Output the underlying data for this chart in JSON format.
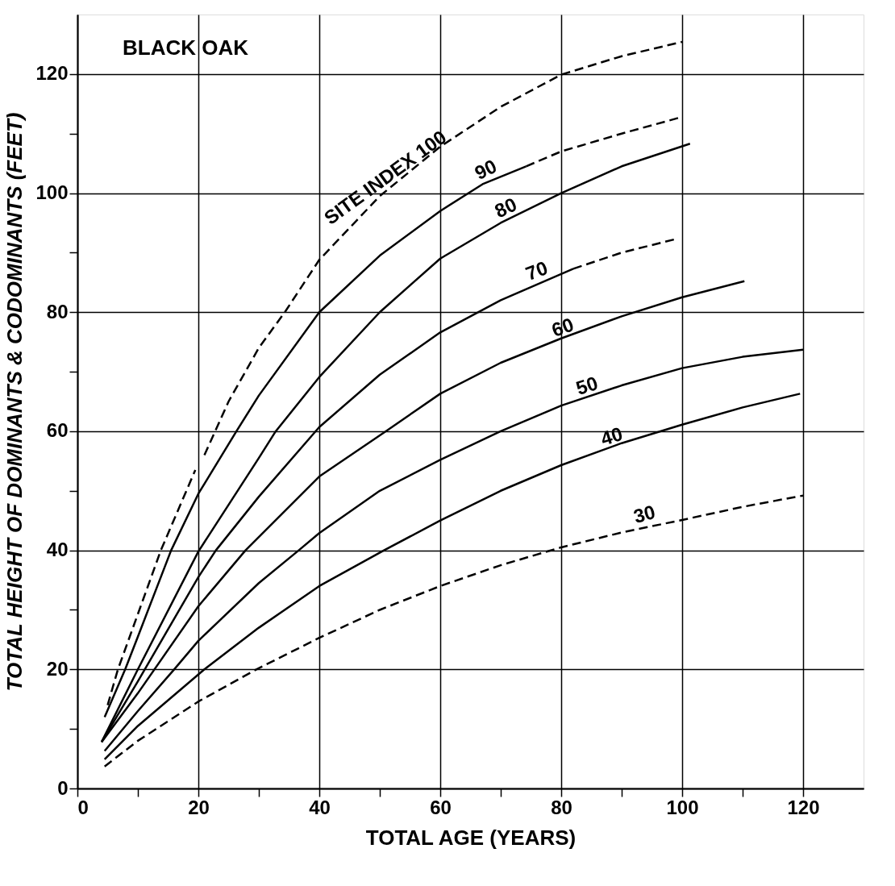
{
  "chart_data": {
    "type": "line",
    "title": "BLACK OAK",
    "xlabel": "TOTAL AGE (YEARS)",
    "ylabel": "TOTAL HEIGHT OF DOMINANTS & CODOMINANTS (FEET)",
    "xlim": [
      0,
      130
    ],
    "ylim": [
      0,
      130
    ],
    "xticks": [
      0,
      {
        "value": 10,
        "label": null
      },
      20,
      {
        "value": 30,
        "label": null
      },
      40,
      {
        "value": 50,
        "label": null
      },
      60,
      {
        "value": 70,
        "label": null
      },
      80,
      {
        "value": 90,
        "label": null
      },
      100,
      {
        "value": 110,
        "label": null
      },
      120
    ],
    "yticks": [
      0,
      {
        "value": 10,
        "label": null
      },
      20,
      {
        "value": 30,
        "label": null
      },
      40,
      {
        "value": 50,
        "label": null
      },
      60,
      {
        "value": 70,
        "label": null
      },
      80,
      {
        "value": 90,
        "label": null
      },
      100,
      {
        "value": 110,
        "label": null
      },
      120
    ],
    "grid": true,
    "marker": "none",
    "series": [
      {
        "color": "#000000",
        "line_style": "dashed",
        "x": [
          5,
          6.7,
          13.8,
          19.5
        ],
        "values": [
          14,
          20,
          40,
          53.5
        ]
      },
      {
        "color": "#000000",
        "line_style": "dashed",
        "x": [
          21,
          25,
          30,
          34.3,
          40,
          50,
          60,
          70,
          80,
          90,
          100
        ],
        "values": [
          56,
          65,
          74,
          80,
          88.8,
          99.5,
          107.8,
          114.5,
          119.9,
          123,
          125.4
        ]
      },
      {
        "color": "#000000",
        "line_style": "solid",
        "x": [
          4.5,
          7.9,
          10,
          15.5,
          20,
          26.3,
          30,
          40,
          50,
          60,
          67,
          74.2
        ],
        "values": [
          12,
          20,
          25.5,
          40,
          49.5,
          60,
          66,
          80,
          89.5,
          97,
          101.5,
          104.5
        ]
      },
      {
        "color": "#000000",
        "line_style": "dashed",
        "x": [
          74.2,
          80,
          90,
          100
        ],
        "values": [
          104.5,
          107,
          110,
          112.8
        ]
      },
      {
        "color": "#000000",
        "line_style": "solid",
        "x": [
          4,
          10,
          20,
          30,
          32.8,
          40,
          50,
          60,
          70,
          80,
          90,
          101.3
        ],
        "values": [
          7.8,
          20,
          39.8,
          55.5,
          60,
          69.1,
          80,
          89,
          95,
          100,
          104.5,
          108.3
        ]
      },
      {
        "color": "#000000",
        "line_style": "solid",
        "x": [
          4,
          10,
          20,
          22.9,
          30,
          40,
          50,
          60,
          70,
          82
        ],
        "values": [
          7.8,
          18,
          35.5,
          40,
          49,
          60.7,
          69.5,
          76.6,
          82,
          87.3
        ]
      },
      {
        "color": "#000000",
        "line_style": "dashed",
        "x": [
          82,
          90,
          99
        ],
        "values": [
          87.3,
          90,
          92.3
        ]
      },
      {
        "color": "#000000",
        "line_style": "solid",
        "x": [
          4,
          10,
          20,
          27.8,
          40,
          51,
          60,
          70,
          80,
          90,
          100,
          110.3
        ],
        "values": [
          7.8,
          16,
          30.6,
          40,
          52.4,
          60,
          66.3,
          71.5,
          75.6,
          79.3,
          82.5,
          85.2
        ]
      },
      {
        "color": "#000000",
        "line_style": "solid",
        "x": [
          4.5,
          10,
          16,
          20,
          30,
          36.6,
          40,
          50,
          60,
          70,
          80,
          90,
          100,
          110,
          120
        ],
        "values": [
          6.3,
          13,
          20,
          24.8,
          34.5,
          40,
          42.9,
          50,
          55.2,
          60,
          64.3,
          67.7,
          70.6,
          72.5,
          73.7
        ]
      },
      {
        "color": "#000000",
        "line_style": "solid",
        "x": [
          4.5,
          10,
          21,
          30,
          40,
          50.7,
          60,
          70,
          80,
          90,
          100,
          110,
          119.5
        ],
        "values": [
          4.9,
          10.5,
          20,
          27,
          34,
          40,
          45,
          50,
          54.3,
          58,
          61.1,
          64,
          66.3
        ]
      },
      {
        "color": "#000000",
        "line_style": "dashed",
        "x": [
          4.5,
          10,
          20,
          29.6,
          40,
          50,
          60,
          70,
          80,
          90,
          100,
          110,
          120
        ],
        "values": [
          3.7,
          8,
          14.6,
          20,
          25.3,
          30,
          34,
          37.5,
          40.5,
          43,
          45.1,
          47.3,
          49.2
        ]
      }
    ],
    "annotations": [
      "SITE INDEX 100",
      "90",
      "80",
      "70",
      "60",
      "50",
      "40",
      "30"
    ]
  }
}
